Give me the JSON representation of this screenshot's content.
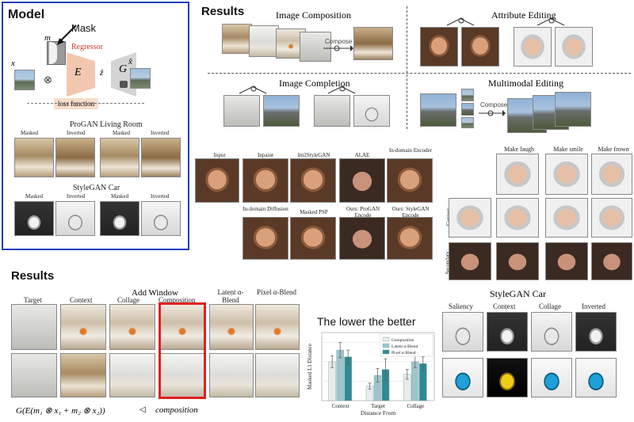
{
  "model_panel": {
    "title": "Model",
    "mask_label": "Mask",
    "m_label": "m",
    "x_label": "x",
    "xhat_label": "x̂",
    "regressor_label": "Regressor",
    "E_label": "E",
    "z_label": "ẑ",
    "G_label": "G",
    "loss_label": "loss function",
    "otimes": "⊗",
    "progan_title": "ProGAN Living Room",
    "stylegan_title": "StyleGAN Car",
    "masked_label": "Masked",
    "inverted_label": "Inverted"
  },
  "results_top": {
    "title": "Results",
    "image_composition": "Image Composition",
    "attribute_editing": "Attribute Editing",
    "image_completion": "Image Completion",
    "multimodal_editing": "Multimodal Editing",
    "compose_label": "Compose",
    "compose_label2": "Compose"
  },
  "face_grid": {
    "cols_row1": [
      "Input",
      "Inpaint",
      "Im2StyleGAN",
      "ALAE",
      "In-domain Encoder"
    ],
    "cols_row2": [
      "In-domain Diffusion",
      "Masked PSP",
      "Ours: ProGAN Encode",
      "Ours: StyleGAN Encode"
    ]
  },
  "edit_grid": {
    "cols": [
      "Make laugh",
      "Make smile",
      "Make frown"
    ],
    "row_labels": [
      "Context",
      "Secondary"
    ]
  },
  "results_bottom": {
    "title": "Results",
    "add_window": "Add Window",
    "cols": [
      "Target",
      "Context",
      "Collage",
      "Composition",
      "Latent α-Blend",
      "Pixel α-Blend"
    ],
    "formula": "G(E(m₁ ⊗ x₁ + m₂ ⊗ x₂))",
    "formula_arrow": "◁",
    "formula_label": "composition"
  },
  "stylegan_car": {
    "title": "StyleGAN Car",
    "cols": [
      "Saliency",
      "Context",
      "Collage",
      "Inverted"
    ]
  },
  "chart_data": {
    "type": "bar",
    "title": "The lower the better",
    "xlabel": "Distance From",
    "ylabel": "Masked L1 Distance",
    "categories": [
      "Context",
      "Target",
      "Collage"
    ],
    "series": [
      {
        "name": "Composition",
        "values": [
          0.4,
          0.15,
          0.27
        ],
        "errors": [
          0.06,
          0.03,
          0.05
        ],
        "color": "#e9ecec"
      },
      {
        "name": "Latent α-Blend",
        "values": [
          0.52,
          0.26,
          0.4
        ],
        "errors": [
          0.08,
          0.07,
          0.06
        ],
        "color": "#9cc6cc"
      },
      {
        "name": "Pixel α-Blend",
        "values": [
          0.45,
          0.32,
          0.38
        ],
        "errors": [
          0.07,
          0.11,
          0.07
        ],
        "color": "#2f8a92"
      }
    ],
    "ylim": [
      0,
      0.7
    ]
  },
  "colors": {
    "model_border": "#1f3fbf",
    "regressor": "#d63a2a",
    "encoder_fill": "#f2c7b0",
    "loss_fill": "#f7dccb",
    "highlight": "#e02020"
  }
}
